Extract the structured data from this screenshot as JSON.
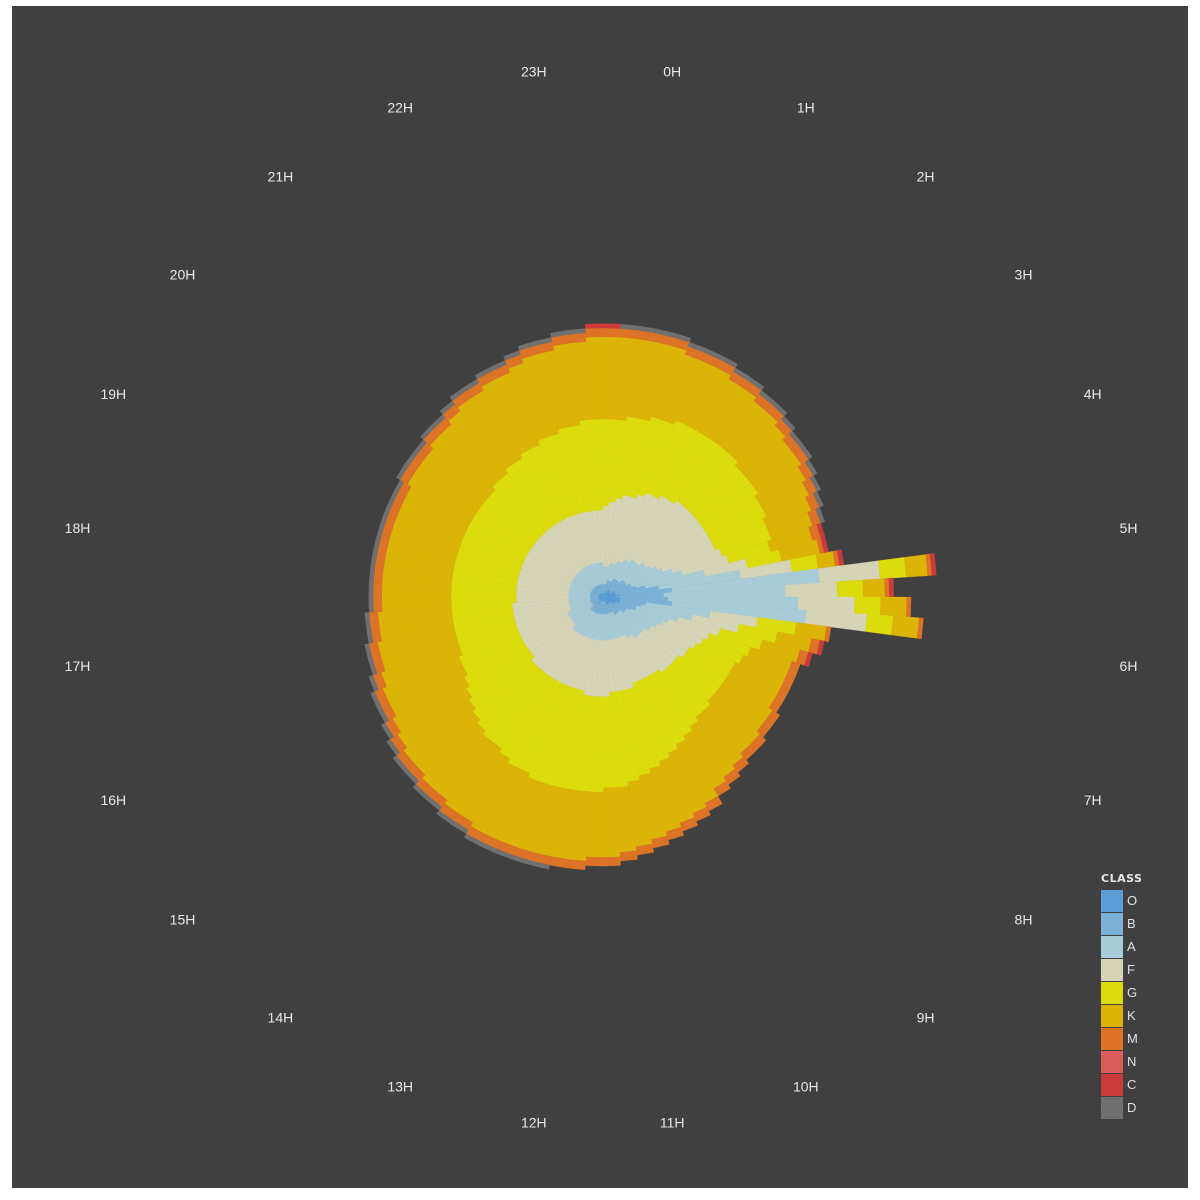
{
  "chart_data": {
    "type": "bar",
    "subtype": "polar-stacked",
    "grid": false,
    "legend_position": "bottom-right",
    "hour_labels": [
      "0H",
      "1H",
      "2H",
      "3H",
      "4H",
      "5H",
      "6H",
      "7H",
      "8H",
      "9H",
      "10H",
      "11H",
      "12H",
      "13H",
      "14H",
      "15H",
      "16H",
      "17H",
      "18H",
      "19H",
      "20H",
      "21H",
      "22H",
      "23H"
    ],
    "bins_per_hour": 4,
    "legend": {
      "title": "CLASS",
      "classes": [
        {
          "label": "O",
          "color": "#5c9fd7"
        },
        {
          "label": "B",
          "color": "#7cb1d6"
        },
        {
          "label": "A",
          "color": "#a8cbd8"
        },
        {
          "label": "F",
          "color": "#d6d4b6"
        },
        {
          "label": "G",
          "color": "#dcdc0c"
        },
        {
          "label": "K",
          "color": "#dcb408"
        },
        {
          "label": "M",
          "color": "#dc7326"
        },
        {
          "label": "N",
          "color": "#dc5c5c"
        },
        {
          "label": "C",
          "color": "#cc3b3b"
        },
        {
          "label": "D",
          "color": "#707070"
        }
      ]
    },
    "series_cumulative": [
      {
        "name": "O",
        "values": [
          1,
          1,
          1,
          1,
          1,
          1,
          1,
          1,
          1,
          1,
          2,
          2,
          2,
          2,
          2,
          2,
          2,
          3,
          3,
          3,
          3,
          3,
          4,
          3,
          4,
          4,
          4,
          4,
          4,
          4,
          3,
          3,
          3,
          2,
          2,
          2,
          2,
          2,
          2,
          2,
          2,
          1,
          1,
          1,
          1,
          1,
          1,
          1,
          1,
          1,
          1,
          1,
          1,
          1,
          1,
          1,
          2,
          1,
          1,
          1,
          1,
          1,
          1,
          1,
          1,
          1,
          1,
          1,
          1,
          1,
          1,
          1,
          1,
          1,
          1,
          1,
          1,
          1,
          1,
          1,
          1,
          1,
          1,
          1,
          1,
          1,
          1,
          1,
          1,
          1,
          1,
          1,
          1,
          1,
          1,
          1
        ]
      },
      {
        "name": "B",
        "values": [
          3,
          3,
          3,
          3,
          4,
          4,
          4,
          4,
          5,
          5,
          5,
          5,
          5,
          6,
          6,
          6,
          6,
          7,
          7,
          8,
          10,
          13,
          16,
          14,
          15,
          16,
          10,
          9,
          8,
          8,
          7,
          6,
          6,
          6,
          5,
          5,
          5,
          5,
          5,
          4,
          4,
          4,
          4,
          4,
          4,
          4,
          4,
          4,
          4,
          4,
          4,
          4,
          4,
          4,
          4,
          4,
          4,
          4,
          4,
          4,
          4,
          3,
          3,
          3,
          3,
          3,
          3,
          3,
          3,
          3,
          3,
          3,
          3,
          3,
          3,
          3,
          3,
          3,
          3,
          3,
          3,
          3,
          3,
          3,
          3,
          3,
          3,
          3,
          3,
          3,
          3,
          3,
          3,
          3,
          3,
          3
        ]
      },
      {
        "name": "A",
        "values": [
          7,
          7,
          7,
          8,
          8,
          8,
          9,
          9,
          10,
          10,
          11,
          11,
          11,
          12,
          12,
          13,
          14,
          15,
          17,
          19,
          24,
          32,
          50,
          42,
          45,
          47,
          25,
          21,
          18,
          16,
          15,
          14,
          13,
          13,
          12,
          12,
          12,
          12,
          11,
          11,
          10,
          10,
          10,
          10,
          10,
          10,
          10,
          10,
          10,
          10,
          10,
          10,
          10,
          10,
          10,
          10,
          10,
          10,
          10,
          10,
          9,
          9,
          9,
          9,
          9,
          9,
          8,
          8,
          8,
          8,
          8,
          8,
          8,
          8,
          8,
          8,
          8,
          8,
          8,
          8,
          8,
          8,
          8,
          8,
          8,
          8,
          8,
          8,
          8,
          8,
          8,
          8,
          8,
          8,
          8,
          8
        ]
      },
      {
        "name": "F",
        "values": [
          21,
          22,
          23,
          24,
          24,
          25,
          26,
          26,
          27,
          27,
          28,
          28,
          28,
          28,
          28,
          28,
          28,
          28,
          29,
          30,
          34,
          44,
          64,
          54,
          58,
          61,
          36,
          32,
          28,
          26,
          25,
          24,
          23,
          23,
          22,
          22,
          22,
          22,
          21,
          21,
          21,
          21,
          21,
          22,
          22,
          22,
          22,
          23,
          23,
          23,
          23,
          22,
          22,
          22,
          22,
          22,
          22,
          22,
          22,
          22,
          22,
          21,
          21,
          21,
          21,
          21,
          21,
          21,
          21,
          21,
          21,
          20,
          20,
          20,
          20,
          20,
          20,
          20,
          20,
          20,
          20,
          20,
          20,
          20,
          20,
          20,
          20,
          20,
          20,
          20,
          20,
          20,
          20,
          20,
          20,
          20
        ]
      },
      {
        "name": "G",
        "values": [
          41,
          41,
          42,
          42,
          43,
          43,
          44,
          44,
          44,
          44,
          44,
          44,
          43,
          43,
          43,
          42,
          42,
          41,
          41,
          40,
          42,
          50,
          70,
          60,
          64,
          67,
          45,
          41,
          38,
          36,
          35,
          34,
          34,
          34,
          34,
          34,
          35,
          35,
          36,
          37,
          38,
          39,
          40,
          41,
          42,
          43,
          44,
          44,
          45,
          45,
          45,
          45,
          45,
          45,
          44,
          44,
          43,
          42,
          42,
          41,
          40,
          39,
          38,
          37,
          36,
          36,
          35,
          35,
          35,
          35,
          35,
          35,
          35,
          35,
          35,
          35,
          35,
          35,
          35,
          35,
          35,
          35,
          35,
          35,
          36,
          36,
          37,
          37,
          38,
          38,
          39,
          39,
          40,
          40,
          41,
          41
        ]
      },
      {
        "name": "K",
        "values": [
          60,
          60,
          60,
          60,
          60,
          59,
          59,
          59,
          58,
          58,
          57,
          57,
          56,
          55,
          55,
          54,
          53,
          52,
          51,
          50,
          51,
          54,
          75,
          65,
          70,
          73,
          52,
          49,
          47,
          46,
          46,
          46,
          46,
          47,
          47,
          48,
          48,
          49,
          50,
          51,
          53,
          54,
          55,
          56,
          57,
          58,
          59,
          60,
          60,
          61,
          61,
          61,
          61,
          61,
          61,
          61,
          60,
          60,
          59,
          59,
          58,
          58,
          57,
          56,
          55,
          55,
          54,
          53,
          53,
          52,
          52,
          51,
          51,
          51,
          51,
          51,
          51,
          51,
          51,
          51,
          52,
          52,
          52,
          53,
          53,
          54,
          55,
          55,
          56,
          56,
          57,
          58,
          58,
          59,
          59,
          60
        ]
      },
      {
        "name": "M",
        "values": [
          62,
          62,
          62,
          62,
          62,
          61,
          61,
          61,
          60,
          60,
          59,
          59,
          58,
          57,
          57,
          56,
          55,
          54,
          53,
          52,
          52,
          55,
          76,
          66,
          71,
          74,
          53,
          51,
          49,
          48,
          48,
          48,
          48,
          49,
          49,
          50,
          50,
          51,
          52,
          53,
          55,
          56,
          57,
          58,
          59,
          60,
          61,
          62,
          62,
          63,
          63,
          63,
          63,
          63,
          63,
          63,
          62,
          62,
          61,
          61,
          60,
          60,
          59,
          58,
          57,
          57,
          56,
          55,
          55,
          54,
          54,
          53,
          53,
          53,
          53,
          53,
          53,
          53,
          53,
          53,
          54,
          54,
          54,
          55,
          55,
          56,
          57,
          57,
          58,
          58,
          59,
          60,
          60,
          61,
          61,
          62
        ]
      },
      {
        "name": "N",
        "values": [
          62,
          62,
          62,
          62,
          62,
          61,
          61,
          61,
          60,
          60,
          59,
          59,
          58,
          57,
          57,
          56,
          55,
          54,
          53,
          52,
          52,
          55,
          76,
          66,
          71,
          74,
          53,
          51,
          49,
          48,
          48,
          48,
          48,
          49,
          49,
          50,
          50,
          51,
          52,
          53,
          55,
          56,
          57,
          58,
          59,
          60,
          61,
          62,
          62,
          63,
          63,
          63,
          63,
          63,
          63,
          63,
          62,
          62,
          61,
          61,
          60,
          60,
          59,
          58,
          57,
          57,
          56,
          55,
          55,
          54,
          54,
          53,
          53,
          53,
          53,
          53,
          53,
          53,
          53,
          53,
          54,
          54,
          54,
          55,
          55,
          56,
          57,
          57,
          58,
          58,
          59,
          60,
          60,
          61,
          61,
          62
        ]
      },
      {
        "name": "C",
        "values": [
          63,
          62,
          62,
          62,
          62,
          61,
          61,
          61,
          60,
          60,
          59,
          59,
          58,
          57,
          57,
          56,
          55,
          54,
          53,
          53,
          53,
          56,
          77,
          67,
          71,
          74,
          53,
          52,
          50,
          48,
          48,
          48,
          48,
          49,
          49,
          50,
          50,
          51,
          52,
          53,
          55,
          56,
          57,
          58,
          59,
          60,
          61,
          62,
          62,
          63,
          63,
          63,
          63,
          63,
          63,
          63,
          62,
          62,
          61,
          61,
          60,
          60,
          59,
          58,
          57,
          57,
          56,
          55,
          55,
          54,
          54,
          53,
          53,
          53,
          53,
          53,
          53,
          53,
          53,
          53,
          54,
          54,
          54,
          55,
          55,
          56,
          57,
          57,
          58,
          58,
          59,
          60,
          60,
          61,
          61,
          63
        ]
      },
      {
        "name": "D",
        "values": [
          63,
          63,
          63,
          63,
          63,
          62,
          62,
          62,
          61,
          61,
          60,
          60,
          59,
          58,
          58,
          57,
          56,
          55,
          54,
          53,
          53,
          56,
          77,
          67,
          71,
          74,
          53,
          52,
          50,
          48,
          48,
          48,
          48,
          49,
          49,
          50,
          50,
          51,
          52,
          53,
          55,
          56,
          57,
          58,
          59,
          60,
          61,
          62,
          62,
          63,
          63,
          64,
          64,
          64,
          64,
          64,
          63,
          63,
          62,
          62,
          61,
          61,
          60,
          59,
          58,
          58,
          57,
          56,
          56,
          55,
          55,
          54,
          54,
          54,
          54,
          54,
          54,
          54,
          54,
          54,
          55,
          55,
          55,
          56,
          56,
          57,
          58,
          58,
          59,
          59,
          60,
          61,
          61,
          62,
          62,
          63
        ]
      }
    ]
  }
}
